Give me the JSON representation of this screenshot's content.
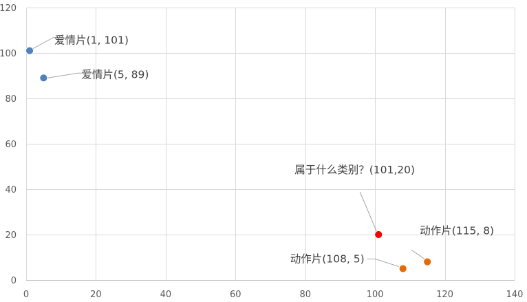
{
  "chart_data": {
    "type": "scatter",
    "title": "",
    "xlabel": "",
    "ylabel": "",
    "xlim": [
      0,
      140
    ],
    "ylim": [
      0,
      120
    ],
    "x_ticks": [
      0,
      20,
      40,
      60,
      80,
      100,
      120,
      140
    ],
    "y_ticks": [
      0,
      20,
      40,
      60,
      80,
      100,
      120
    ],
    "grid": true,
    "legend": "none",
    "points": [
      {
        "x": 1,
        "y": 101,
        "label": "爱情片(1, 101)",
        "color": "#4f81bd"
      },
      {
        "x": 5,
        "y": 89,
        "label": "爱情片(5, 89)",
        "color": "#4f81bd"
      },
      {
        "x": 108,
        "y": 5,
        "label": "动作片(108, 5)",
        "color": "#e36c09"
      },
      {
        "x": 115,
        "y": 8,
        "label": "动作片(115, 8)",
        "color": "#e36c09"
      },
      {
        "x": 101,
        "y": 20,
        "label": "属于什么类别？(101,20)",
        "color": "#ff0000"
      }
    ]
  }
}
